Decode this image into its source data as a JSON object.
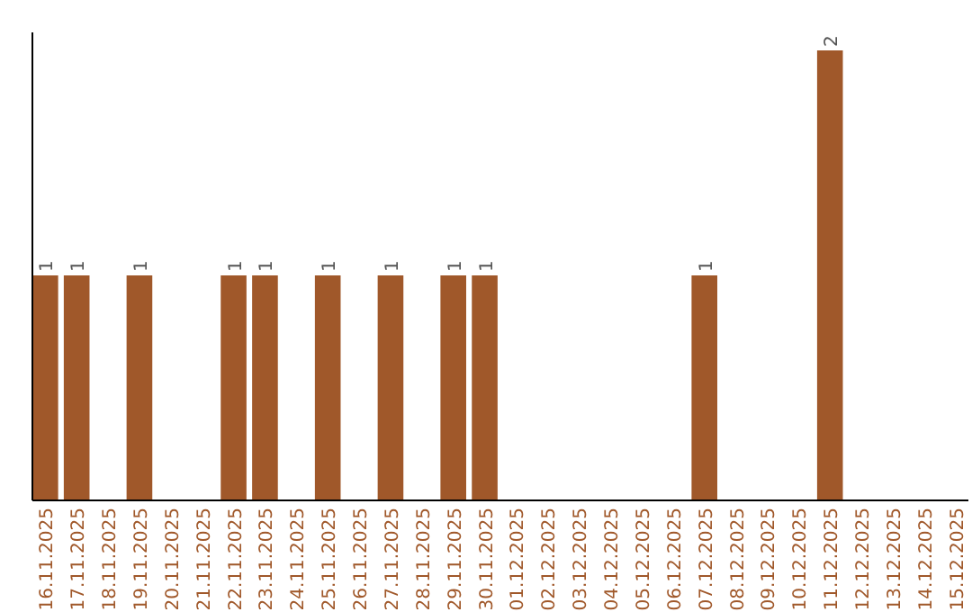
{
  "chart_data": {
    "type": "bar",
    "categories": [
      "16.11.2025",
      "17.11.2025",
      "18.11.2025",
      "19.11.2025",
      "20.11.2025",
      "21.11.2025",
      "22.11.2025",
      "23.11.2025",
      "24.11.2025",
      "25.11.2025",
      "26.11.2025",
      "27.11.2025",
      "28.11.2025",
      "29.11.2025",
      "30.11.2025",
      "01.12.2025",
      "02.12.2025",
      "03.12.2025",
      "04.12.2025",
      "05.12.2025",
      "06.12.2025",
      "07.12.2025",
      "08.12.2025",
      "09.12.2025",
      "10.12.2025",
      "11.12.2025",
      "12.12.2025",
      "13.12.2025",
      "14.12.2025",
      "15.12.2025"
    ],
    "values": [
      1,
      1,
      0,
      1,
      0,
      0,
      1,
      1,
      0,
      1,
      0,
      1,
      0,
      1,
      1,
      0,
      0,
      0,
      0,
      0,
      0,
      1,
      0,
      0,
      0,
      2,
      0,
      0,
      0,
      0
    ],
    "value_labels": [
      "1",
      "1",
      null,
      "1",
      null,
      null,
      "1",
      "1",
      null,
      "1",
      null,
      "1",
      null,
      "1",
      "1",
      null,
      null,
      null,
      null,
      null,
      null,
      "1",
      null,
      null,
      null,
      "2",
      null,
      null,
      null,
      null
    ],
    "color": "#a0582a"
  }
}
